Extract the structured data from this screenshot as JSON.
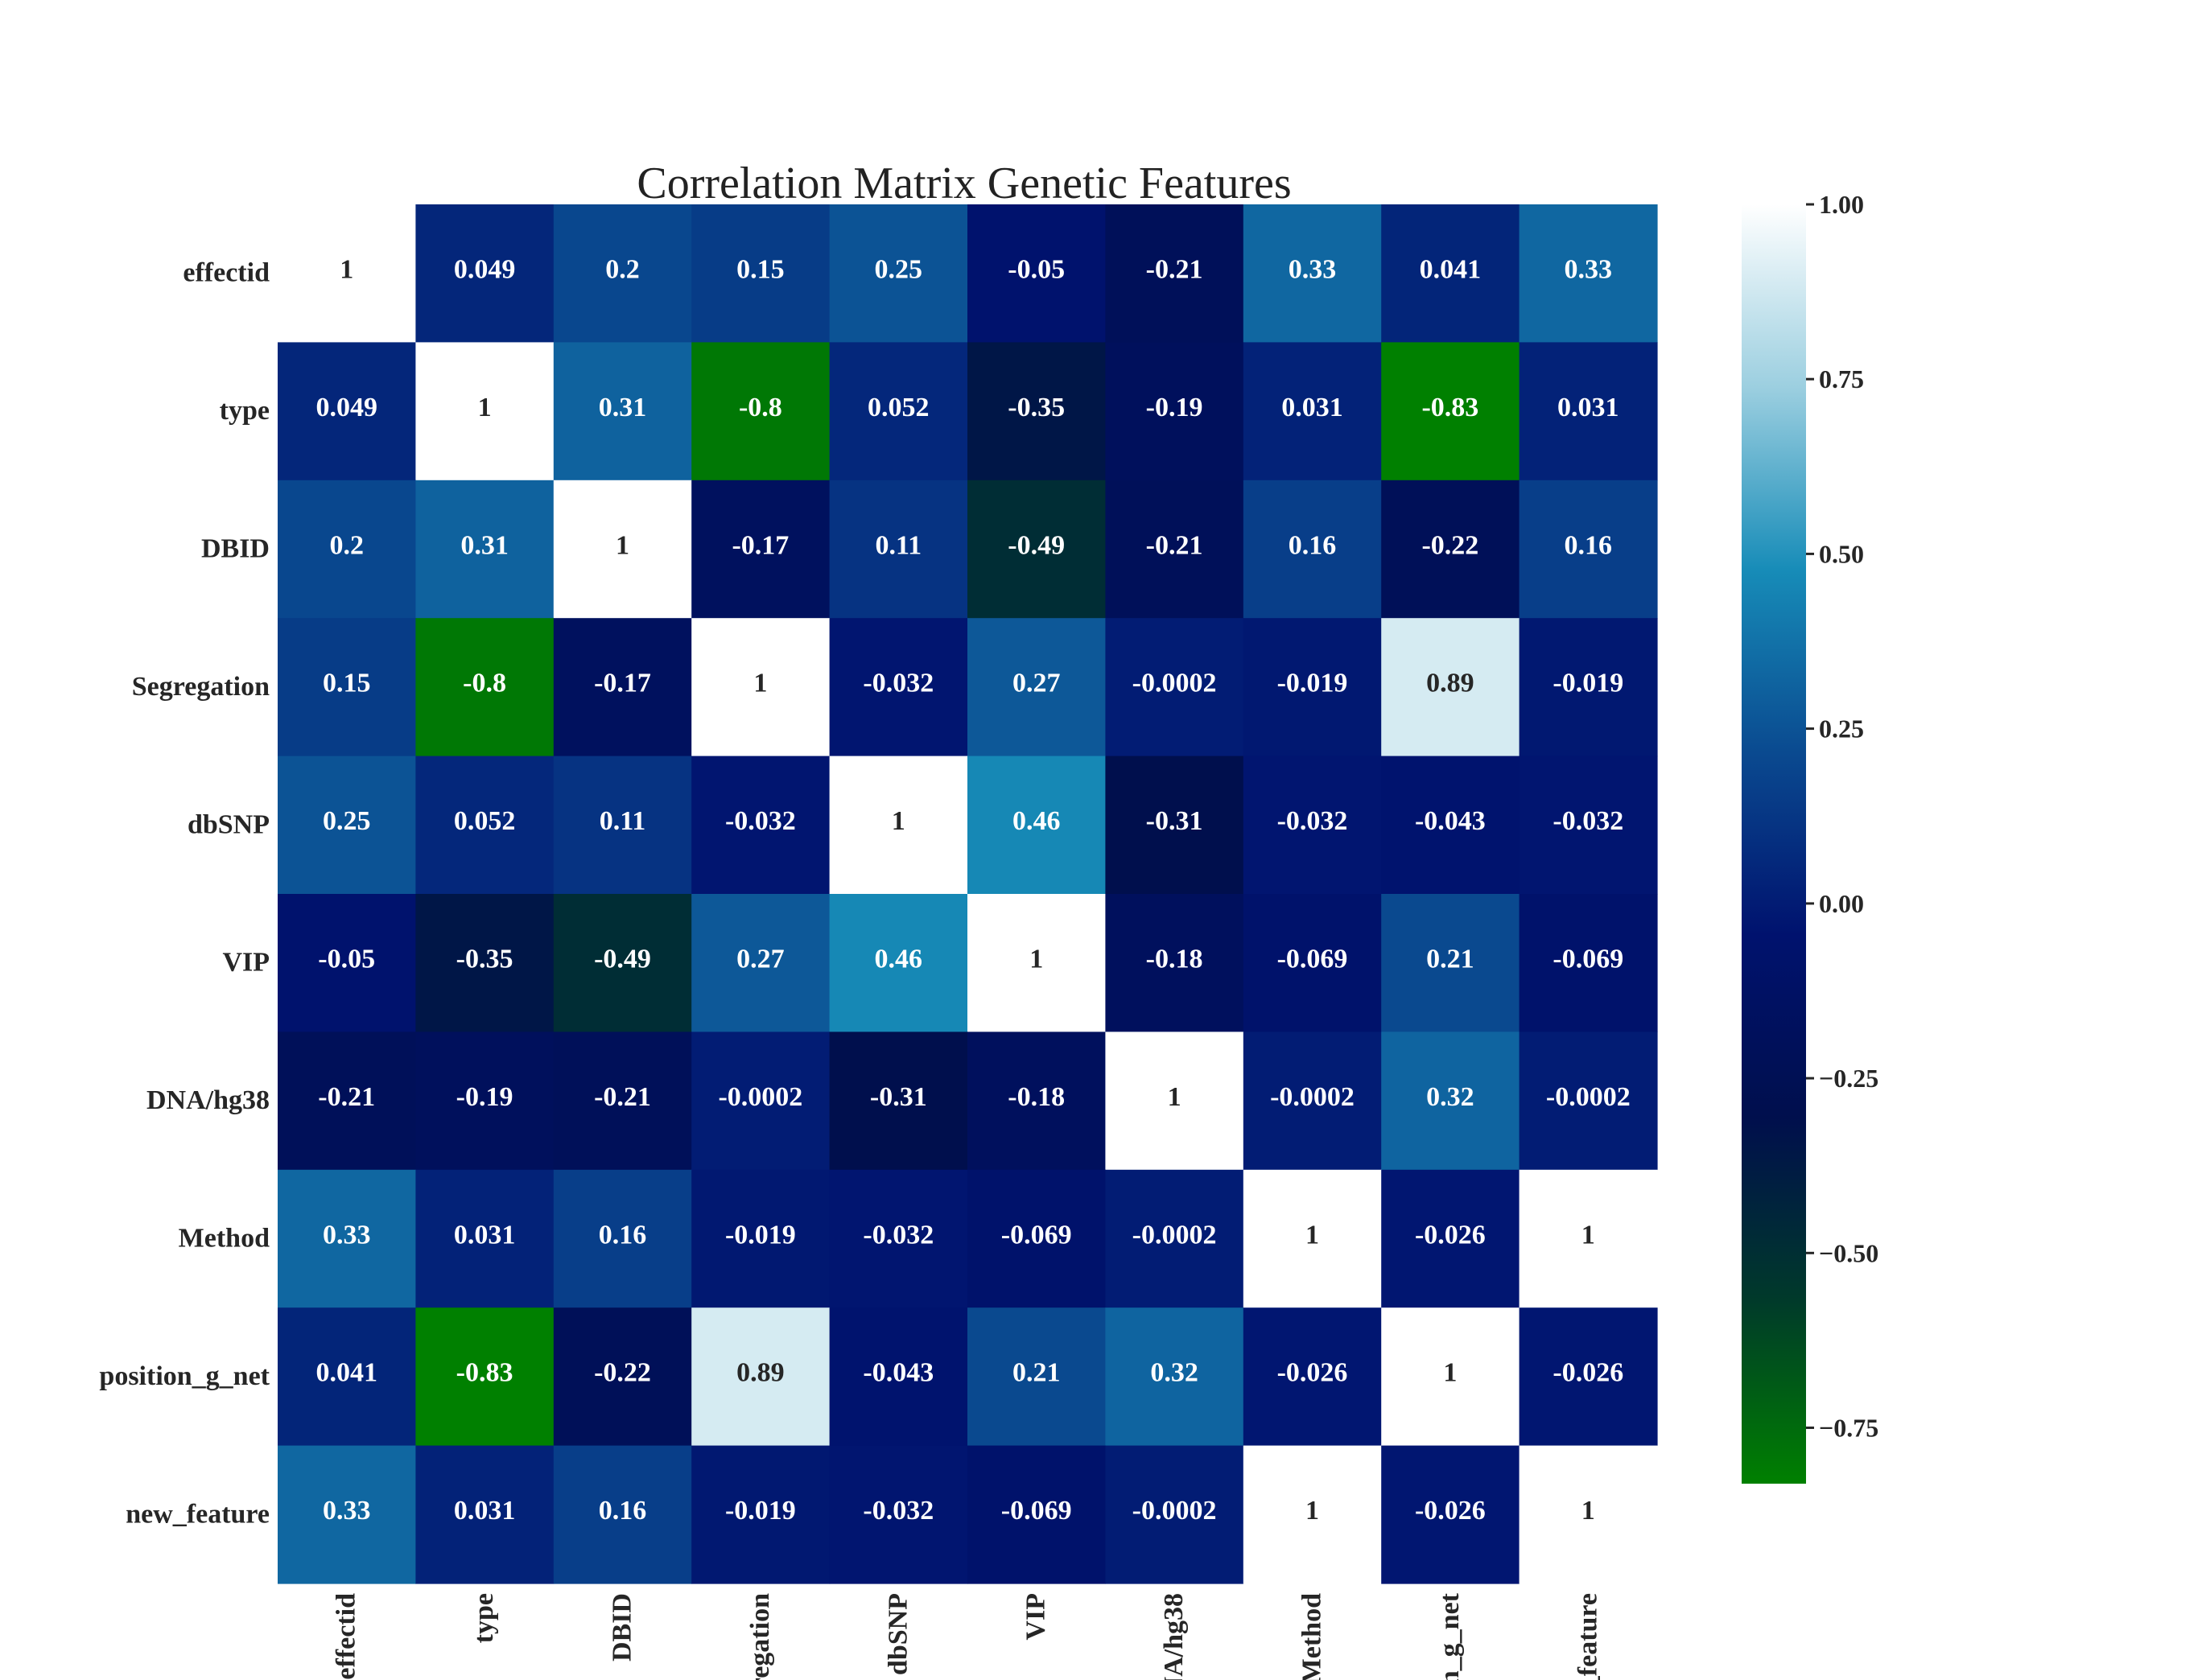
{
  "chart_data": {
    "type": "heatmap",
    "title": "Correlation Matrix Genetic Features",
    "labels": [
      "effectid",
      "type",
      "DBID",
      "Segregation",
      "dbSNP",
      "VIP",
      "DNA/hg38",
      "Method",
      "position_g_net",
      "new_feature"
    ],
    "annotations": [
      [
        "1",
        "0.049",
        "0.2",
        "0.15",
        "0.25",
        "-0.05",
        "-0.21",
        "0.33",
        "0.041",
        "0.33"
      ],
      [
        "0.049",
        "1",
        "0.31",
        "-0.8",
        "0.052",
        "-0.35",
        "-0.19",
        "0.031",
        "-0.83",
        "0.031"
      ],
      [
        "0.2",
        "0.31",
        "1",
        "-0.17",
        "0.11",
        "-0.49",
        "-0.21",
        "0.16",
        "-0.22",
        "0.16"
      ],
      [
        "0.15",
        "-0.8",
        "-0.17",
        "1",
        "-0.032",
        "0.27",
        "-0.0002",
        "-0.019",
        "0.89",
        "-0.019"
      ],
      [
        "0.25",
        "0.052",
        "0.11",
        "-0.032",
        "1",
        "0.46",
        "-0.31",
        "-0.032",
        "-0.043",
        "-0.032"
      ],
      [
        "-0.05",
        "-0.35",
        "-0.49",
        "0.27",
        "0.46",
        "1",
        "-0.18",
        "-0.069",
        "0.21",
        "-0.069"
      ],
      [
        "-0.21",
        "-0.19",
        "-0.21",
        "-0.0002",
        "-0.31",
        "-0.18",
        "1",
        "-0.0002",
        "0.32",
        "-0.0002"
      ],
      [
        "0.33",
        "0.031",
        "0.16",
        "-0.019",
        "-0.032",
        "-0.069",
        "-0.0002",
        "1",
        "-0.026",
        "1"
      ],
      [
        "0.041",
        "-0.83",
        "-0.22",
        "0.89",
        "-0.043",
        "0.21",
        "0.32",
        "-0.026",
        "1",
        "-0.026"
      ],
      [
        "0.33",
        "0.031",
        "0.16",
        "-0.019",
        "-0.032",
        "-0.069",
        "-0.0002",
        "1",
        "-0.026",
        "1"
      ]
    ],
    "colormap": [
      "#008000",
      "#003a2a",
      "#000f4d",
      "#00126e",
      "#0a4a90",
      "#178cb8",
      "#9ccfe0",
      "#ffffff"
    ],
    "colorbar": {
      "vmin": -0.83,
      "vmax": 1.0,
      "ticks": [
        1.0,
        0.75,
        0.5,
        0.25,
        0.0,
        -0.25,
        -0.5,
        -0.75
      ],
      "tick_labels": [
        "1.00",
        "0.75",
        "0.50",
        "0.25",
        "0.00",
        "−0.25",
        "−0.50",
        "−0.75"
      ]
    },
    "legend": "colorbar-right"
  }
}
